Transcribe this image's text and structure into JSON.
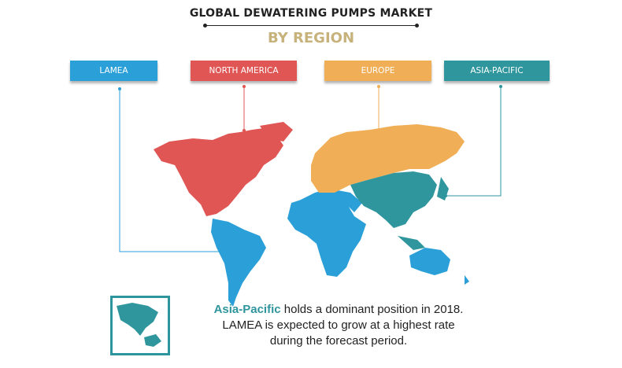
{
  "title": "GLOBAL DEWATERING PUMPS MARKET",
  "subtitle": "BY REGION",
  "regions": [
    {
      "label": "LAMEA",
      "color": "#2a9fd8"
    },
    {
      "label": "NORTH AMERICA",
      "color": "#e05654"
    },
    {
      "label": "EUROPE",
      "color": "#f0ae57"
    },
    {
      "label": "ASIA-PACIFIC",
      "color": "#2f969d"
    }
  ],
  "note": {
    "highlight": "Asia-Pacific",
    "line1": " holds a dominant position in 2018.",
    "line2": "LAMEA is expected to grow at a highest rate",
    "line3": "during the forecast period."
  },
  "thumbnail_icon": "asia-pacific-map-icon"
}
